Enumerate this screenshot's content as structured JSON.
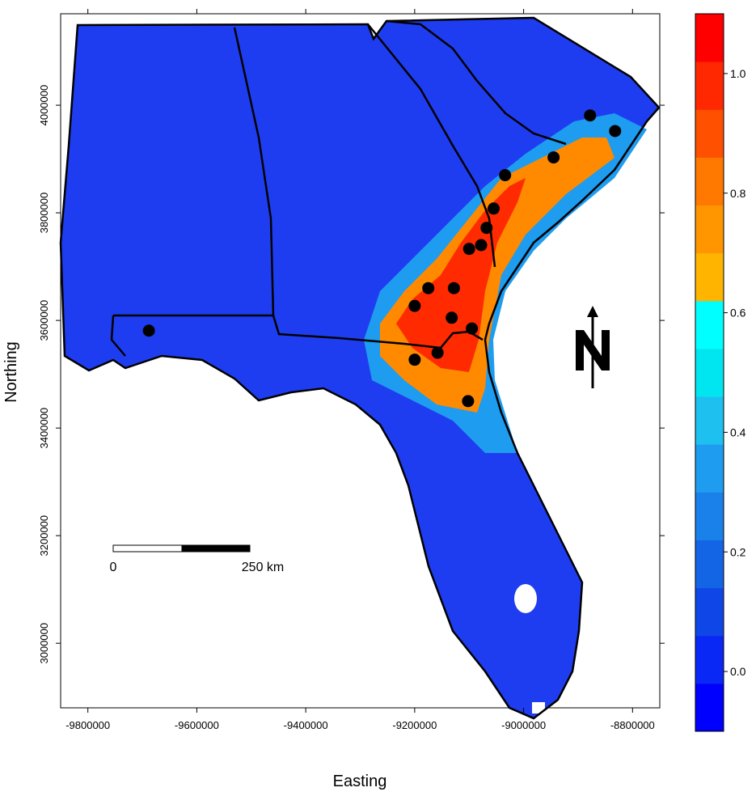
{
  "axes": {
    "x_title": "Easting",
    "y_title": "Northing",
    "x_ticks": [
      "-9800000",
      "-9600000",
      "-9400000",
      "-9200000",
      "-9000000",
      "-8800000"
    ],
    "x_tick_values": [
      -9800000,
      -9600000,
      -9400000,
      -9200000,
      -9000000,
      -8800000
    ],
    "y_ticks": [
      "3000000",
      "3200000",
      "3400000",
      "3600000",
      "3800000",
      "4000000"
    ],
    "y_tick_values": [
      3000000,
      3200000,
      3400000,
      3600000,
      3800000,
      4000000
    ],
    "x_range": [
      -9850000,
      -8750000
    ],
    "y_range": [
      2880000,
      4170000
    ]
  },
  "colorbar": {
    "tick_labels": [
      "0.0",
      "0.2",
      "0.4",
      "0.6",
      "0.8",
      "1.0"
    ],
    "tick_values": [
      0.0,
      0.2,
      0.4,
      0.6,
      0.8,
      1.0
    ],
    "range": [
      -0.1,
      1.1
    ],
    "bands": [
      "#0000ff",
      "#0a28f5",
      "#0f46e8",
      "#1464e6",
      "#1a80ea",
      "#1e9cf0",
      "#1ec0f0",
      "#00e6f0",
      "#00ffff",
      "#ffb400",
      "#ff9600",
      "#ff7800",
      "#ff5000",
      "#ff2800",
      "#ff0000"
    ]
  },
  "scale_bar": {
    "start_label": "0",
    "end_label": "250 km"
  },
  "north_arrow": {
    "letter": "N"
  },
  "sites": [
    {
      "x": -8878000,
      "y": 3981000
    },
    {
      "x": -8832000,
      "y": 3952000
    },
    {
      "x": -8945000,
      "y": 3903000
    },
    {
      "x": -9034000,
      "y": 3870000
    },
    {
      "x": -9055000,
      "y": 3808000
    },
    {
      "x": -9068000,
      "y": 3772000
    },
    {
      "x": -9078000,
      "y": 3740000
    },
    {
      "x": -9100000,
      "y": 3733000
    },
    {
      "x": -9175000,
      "y": 3660000
    },
    {
      "x": -9128000,
      "y": 3660000
    },
    {
      "x": -9200000,
      "y": 3627000
    },
    {
      "x": -9132000,
      "y": 3605000
    },
    {
      "x": -9095000,
      "y": 3585000
    },
    {
      "x": -9158000,
      "y": 3540000
    },
    {
      "x": -9200000,
      "y": 3527000
    },
    {
      "x": -9102000,
      "y": 3450000
    },
    {
      "x": -9688000,
      "y": 3581000
    }
  ],
  "colors": {
    "land_background": "#1f3df0",
    "outline": "#000000"
  }
}
